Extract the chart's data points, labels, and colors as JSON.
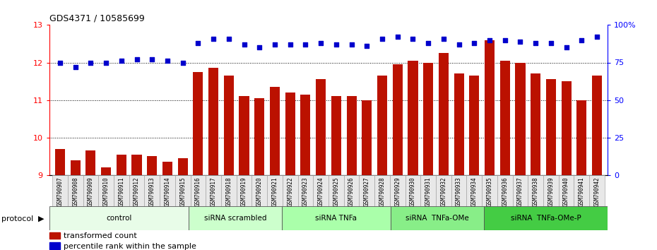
{
  "title": "GDS4371 / 10585699",
  "samples": [
    "GSM790907",
    "GSM790908",
    "GSM790909",
    "GSM790910",
    "GSM790911",
    "GSM790912",
    "GSM790913",
    "GSM790914",
    "GSM790915",
    "GSM790916",
    "GSM790917",
    "GSM790918",
    "GSM790919",
    "GSM790920",
    "GSM790921",
    "GSM790922",
    "GSM790923",
    "GSM790924",
    "GSM790925",
    "GSM790926",
    "GSM790927",
    "GSM790928",
    "GSM790929",
    "GSM790930",
    "GSM790931",
    "GSM790932",
    "GSM790933",
    "GSM790934",
    "GSM790935",
    "GSM790936",
    "GSM790937",
    "GSM790938",
    "GSM790939",
    "GSM790940",
    "GSM790941",
    "GSM790942"
  ],
  "bar_values": [
    9.7,
    9.4,
    9.65,
    9.2,
    9.55,
    9.55,
    9.5,
    9.35,
    9.45,
    11.75,
    11.85,
    11.65,
    11.1,
    11.05,
    11.35,
    11.2,
    11.15,
    11.55,
    11.1,
    11.1,
    11.0,
    11.65,
    11.95,
    12.05,
    12.0,
    12.25,
    11.7,
    11.65,
    12.6,
    12.05,
    12.0,
    11.7,
    11.55,
    11.5,
    11.0,
    11.65
  ],
  "blue_values": [
    75,
    72,
    75,
    75,
    76,
    77,
    77,
    76,
    75,
    88,
    91,
    91,
    87,
    85,
    87,
    87,
    87,
    88,
    87,
    87,
    86,
    91,
    92,
    91,
    88,
    91,
    87,
    88,
    90,
    90,
    89,
    88,
    88,
    85,
    90,
    92
  ],
  "groups": [
    {
      "label": "control",
      "start": 0,
      "end": 9
    },
    {
      "label": "siRNA scrambled",
      "start": 9,
      "end": 15
    },
    {
      "label": "siRNA TNFa",
      "start": 15,
      "end": 22
    },
    {
      "label": "siRNA  TNFa-OMe",
      "start": 22,
      "end": 28
    },
    {
      "label": "siRNA  TNFa-OMe-P",
      "start": 28,
      "end": 36
    }
  ],
  "group_colors": [
    "#e8fce8",
    "#ccffcc",
    "#aaffaa",
    "#88ee88",
    "#44cc44"
  ],
  "ylim_left": [
    9,
    13
  ],
  "ylim_right": [
    0,
    100
  ],
  "yticks_left": [
    9,
    10,
    11,
    12,
    13
  ],
  "yticks_right": [
    0,
    25,
    50,
    75,
    100
  ],
  "bar_color": "#bb1100",
  "dot_color": "#0000cc",
  "protocol_label": "protocol",
  "legend1": "transformed count",
  "legend2": "percentile rank within the sample"
}
